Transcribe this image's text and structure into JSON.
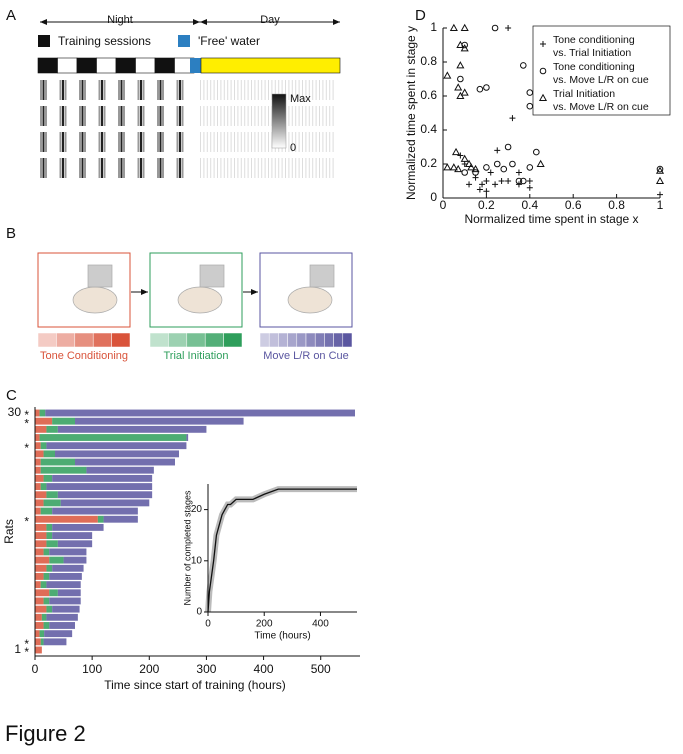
{
  "panel_labels": {
    "a": "A",
    "b": "B",
    "c": "C",
    "d": "D"
  },
  "panel_a": {
    "night": "Night",
    "day": "Day",
    "training": "Training sessions",
    "water": "'Free' water",
    "max": "Max",
    "min": "0"
  },
  "chart_data": [
    {
      "type": "bar",
      "orientation": "horizontal",
      "stacked": true,
      "ylabel": "Rats",
      "xlabel": "Time since start of training (hours)",
      "categories": [
        "1",
        null,
        null,
        null,
        null,
        null,
        null,
        null,
        null,
        null,
        null,
        null,
        null,
        null,
        null,
        null,
        null,
        null,
        null,
        null,
        null,
        null,
        null,
        null,
        null,
        null,
        null,
        null,
        null,
        "30"
      ],
      "annotations": [
        {
          "text": "*",
          "category": 0
        },
        {
          "text": "*",
          "category": 1
        },
        {
          "text": "*",
          "category": 16
        },
        {
          "text": "*",
          "category": 25
        },
        {
          "text": "*",
          "category": 28
        },
        {
          "text": "*",
          "category": 29
        }
      ],
      "series": [
        {
          "name": "Tone Conditioning",
          "color": "#d9533a",
          "values": [
            12,
            10,
            8,
            15,
            12,
            20,
            15,
            25,
            10,
            15,
            20,
            25,
            15,
            20,
            20,
            20,
            110,
            10,
            15,
            20,
            10,
            15,
            10,
            10,
            15,
            10,
            8,
            20,
            30,
            8
          ]
        },
        {
          "name": "Trial Initiation",
          "color": "#2e9e5b",
          "values": [
            0,
            5,
            8,
            10,
            8,
            10,
            10,
            15,
            10,
            10,
            10,
            25,
            10,
            20,
            10,
            10,
            10,
            20,
            30,
            20,
            10,
            15,
            80,
            60,
            20,
            10,
            257,
            20,
            40,
            10
          ]
        },
        {
          "name": "Move L/R on Cue",
          "color": "#5a56a0",
          "values": [
            0,
            40,
            49,
            45,
            55,
            48,
            55,
            40,
            60,
            57,
            55,
            40,
            65,
            60,
            70,
            90,
            60,
            150,
            155,
            165,
            185,
            175,
            118,
            175,
            217,
            245,
            3,
            260,
            295,
            542
          ]
        }
      ],
      "xlim": [
        0,
        560
      ],
      "xticks": [
        0,
        100,
        200,
        300,
        400,
        500
      ]
    },
    {
      "type": "line",
      "xlabel": "Time (hours)",
      "ylabel": "Number of completed stages",
      "color": "#111111",
      "x": [
        0,
        5,
        10,
        20,
        30,
        40,
        50,
        60,
        70,
        80,
        100,
        130,
        160,
        200,
        250,
        300,
        350,
        400,
        500,
        530
      ],
      "values": [
        0,
        4,
        6,
        10,
        15,
        17,
        19,
        20,
        21,
        21,
        22,
        22,
        22,
        23,
        24,
        24,
        24,
        24,
        24,
        24
      ],
      "xlim": [
        0,
        530
      ],
      "xticks": [
        0,
        200,
        400
      ],
      "ylim": [
        0,
        25
      ],
      "yticks": [
        0,
        10,
        20
      ]
    },
    {
      "type": "scatter",
      "xlabel": "Normalized time spent in stage x",
      "ylabel": "Normalized time spent in stage y",
      "legend": "upper right",
      "series": [
        {
          "name": "Tone conditioning vs. Trial Initiation",
          "marker": "plus",
          "color": "#111111",
          "x": [
            0.3,
            0.32,
            0.15,
            0.2,
            0.25,
            0.18,
            0.3,
            0.35,
            0.12,
            0.4,
            0.1,
            0.22,
            0.27,
            0.17,
            0.35,
            0.4,
            1,
            0.08,
            0.2,
            0.24
          ],
          "values": [
            1,
            0.47,
            0.12,
            0.1,
            0.28,
            0.08,
            0.1,
            0.08,
            0.08,
            0.1,
            0.2,
            0.15,
            0.1,
            0.05,
            0.15,
            0.06,
            0.02,
            0.25,
            0.04,
            0.08
          ]
        },
        {
          "name": "Tone conditioning vs. Move L/R on cue",
          "marker": "circle",
          "color": "#111111",
          "x": [
            0.24,
            0.1,
            0.37,
            0.08,
            0.17,
            0.2,
            0.4,
            0.4,
            0.3,
            0.43,
            0.25,
            0.32,
            0.15,
            0.35,
            1,
            0.1,
            0.2,
            0.4,
            0.28,
            0.37
          ],
          "values": [
            1,
            0.9,
            0.78,
            0.7,
            0.64,
            0.65,
            0.62,
            0.54,
            0.3,
            0.27,
            0.2,
            0.2,
            0.15,
            0.1,
            0.17,
            0.15,
            0.18,
            0.18,
            0.17,
            0.1
          ]
        },
        {
          "name": "Trial Initiation vs. Move L/R on cue",
          "marker": "triangle",
          "color": "#111111",
          "x": [
            0.05,
            0.1,
            0.08,
            0.1,
            0.02,
            0.08,
            0.07,
            0.1,
            0.08,
            0.06,
            0.1,
            0.12,
            0.05,
            0.07,
            0.13,
            0.15,
            0.02,
            1,
            0.45,
            1
          ],
          "values": [
            1,
            1,
            0.9,
            0.88,
            0.72,
            0.78,
            0.65,
            0.62,
            0.6,
            0.27,
            0.23,
            0.2,
            0.18,
            0.17,
            0.18,
            0.17,
            0.18,
            0.1,
            0.2,
            0.16
          ]
        }
      ],
      "xlim": [
        0,
        1
      ],
      "xticks": [
        0,
        0.2,
        0.4,
        0.6,
        0.8,
        1
      ],
      "ylim": [
        0,
        1
      ],
      "yticks": [
        0,
        0.2,
        0.4,
        0.6,
        0.8,
        1
      ]
    }
  ],
  "figure_caption": "Figure 2"
}
